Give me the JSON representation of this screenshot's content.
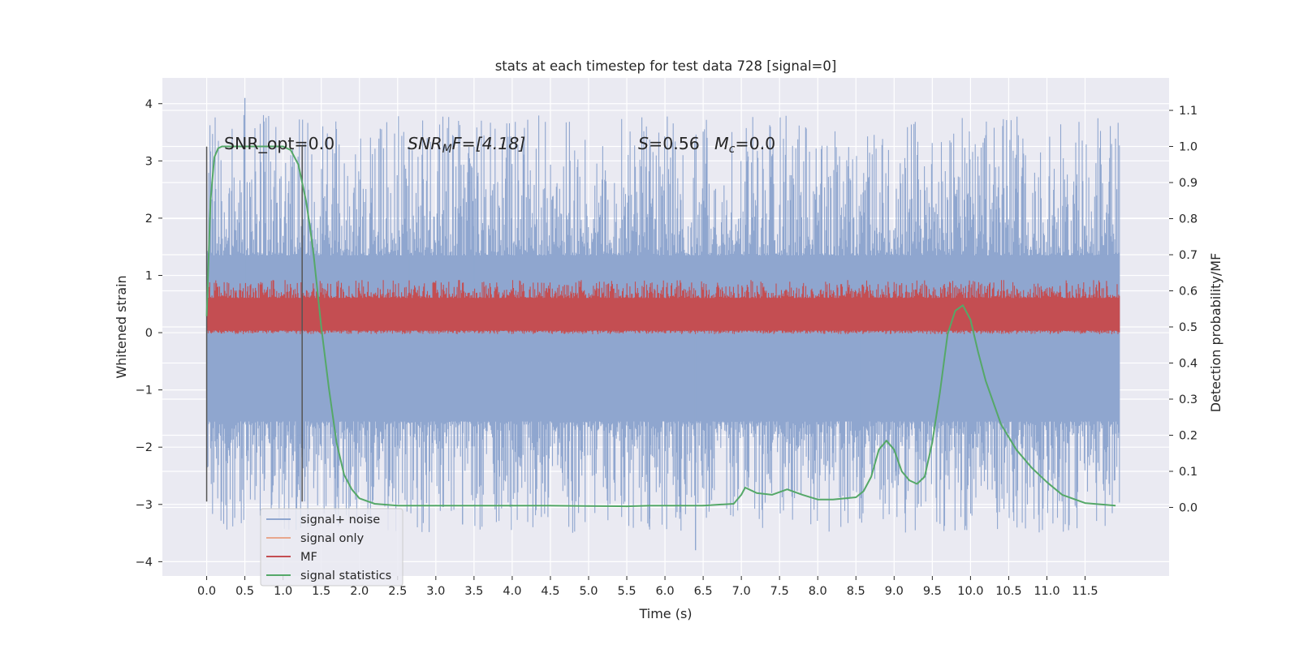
{
  "chart_data": {
    "type": "line",
    "title": "stats at each timestep for test data 728 [signal=0]",
    "xlabel": "Time (s)",
    "ylabel_left": "Whitened strain",
    "ylabel_right": "Detection probability/MF",
    "xlim": [
      -0.58,
      12.6
    ],
    "ylim_left": [
      -4.25,
      4.45
    ],
    "ylim_right": [
      -0.19,
      1.19
    ],
    "x_ticks": [
      "0.0",
      "0.5",
      "1.0",
      "1.5",
      "2.0",
      "2.5",
      "3.0",
      "3.5",
      "4.0",
      "4.5",
      "5.0",
      "5.5",
      "6.0",
      "6.5",
      "7.0",
      "7.5",
      "8.0",
      "8.5",
      "9.0",
      "9.5",
      "10.0",
      "10.5",
      "11.0",
      "11.5"
    ],
    "y_ticks_left": [
      "−4",
      "−3",
      "−2",
      "−1",
      "0",
      "1",
      "2",
      "3",
      "4"
    ],
    "y_ticks_right": [
      "0.0",
      "0.1",
      "0.2",
      "0.3",
      "0.4",
      "0.5",
      "0.6",
      "0.7",
      "0.8",
      "0.9",
      "1.0",
      "1.1"
    ],
    "vlines": [
      0.0,
      1.25
    ],
    "vline_range": [
      -2.95,
      3.25
    ],
    "annotations": {
      "snr_opt": "SNR_opt=0.0",
      "snr_mf_base": "SNR",
      "snr_mf_sub": "M",
      "snr_mf_rest": "F=[4.18]",
      "s_label": "S",
      "s_value": "=0.56",
      "mc_base": "M",
      "mc_sub": "c",
      "mc_value": "=0.0"
    },
    "legend": {
      "placement": "lower-left",
      "entries": [
        "signal+ noise",
        "signal only",
        "MF",
        "signal statistics"
      ]
    },
    "colors": {
      "signal_noise": "#8fa6cf",
      "signal_only": "#e8a68c",
      "mf": "#c44e52",
      "signal_statistics": "#55a868",
      "background": "#eaeaf2",
      "vline": "#555555"
    },
    "series": [
      {
        "name": "signal+ noise",
        "kind": "noise_band",
        "x_range": [
          0.0,
          11.95
        ],
        "core_range": [
          -1.55,
          1.35
        ],
        "spike_max": 4.1,
        "spike_min": -3.8
      },
      {
        "name": "signal only",
        "kind": "flat",
        "value": 0.0
      },
      {
        "name": "MF",
        "kind": "noise_band_right_axis",
        "x_range": [
          0.0,
          11.95
        ],
        "core_range": [
          0.49,
          0.58
        ],
        "spike_max": 0.63,
        "spike_min": 0.48
      },
      {
        "name": "signal statistics",
        "kind": "line_right_axis",
        "x": [
          0.0,
          0.05,
          0.1,
          0.15,
          0.2,
          0.3,
          0.5,
          0.8,
          1.0,
          1.1,
          1.2,
          1.3,
          1.35,
          1.4,
          1.5,
          1.6,
          1.7,
          1.8,
          1.9,
          2.0,
          2.2,
          2.5,
          3.0,
          3.5,
          4.0,
          4.5,
          5.0,
          5.5,
          5.8,
          6.0,
          6.5,
          6.9,
          7.0,
          7.05,
          7.2,
          7.4,
          7.6,
          7.8,
          8.0,
          8.2,
          8.5,
          8.6,
          8.7,
          8.8,
          8.9,
          9.0,
          9.1,
          9.2,
          9.3,
          9.4,
          9.5,
          9.6,
          9.7,
          9.8,
          9.9,
          10.0,
          10.1,
          10.2,
          10.4,
          10.6,
          10.8,
          11.0,
          11.2,
          11.5,
          11.9
        ],
        "y": [
          0.53,
          0.85,
          0.97,
          0.995,
          1.0,
          1.0,
          1.0,
          1.0,
          1.0,
          0.99,
          0.95,
          0.85,
          0.78,
          0.7,
          0.5,
          0.33,
          0.18,
          0.09,
          0.05,
          0.025,
          0.01,
          0.005,
          0.005,
          0.005,
          0.005,
          0.005,
          0.004,
          0.003,
          0.005,
          0.005,
          0.005,
          0.01,
          0.035,
          0.055,
          0.04,
          0.035,
          0.05,
          0.035,
          0.022,
          0.022,
          0.028,
          0.045,
          0.085,
          0.16,
          0.185,
          0.16,
          0.1,
          0.075,
          0.065,
          0.085,
          0.18,
          0.32,
          0.48,
          0.545,
          0.56,
          0.52,
          0.43,
          0.35,
          0.23,
          0.16,
          0.11,
          0.07,
          0.035,
          0.012,
          0.005
        ]
      }
    ]
  }
}
